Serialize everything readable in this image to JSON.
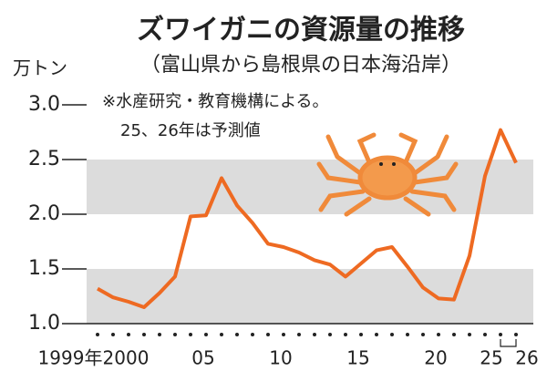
{
  "chart_data": {
    "type": "line",
    "title": "ズワイガニの資源量の推移",
    "subtitle": "（富山県から島根県の日本海沿岸）",
    "notes": [
      "※水産研究・教育機構による。",
      "25、26年は予測値"
    ],
    "y_unit": "万トン",
    "x": [
      1999,
      2000,
      2001,
      2002,
      2003,
      2004,
      2005,
      2006,
      2007,
      2008,
      2009,
      2010,
      2011,
      2012,
      2013,
      2014,
      2015,
      2016,
      2017,
      2018,
      2019,
      2020,
      2021,
      2022,
      2023,
      2024,
      2025,
      2026
    ],
    "values": [
      1.32,
      1.24,
      1.2,
      1.15,
      1.28,
      1.43,
      1.98,
      1.99,
      2.33,
      2.08,
      1.92,
      1.73,
      1.7,
      1.65,
      1.58,
      1.54,
      1.43,
      1.55,
      1.67,
      1.7,
      1.52,
      1.33,
      1.23,
      1.22,
      1.62,
      2.35,
      2.77,
      2.47
    ],
    "color": "#ee6a22",
    "xlim": [
      1999,
      2026
    ],
    "xticks": [
      {
        "value": 1999,
        "label": "1999年"
      },
      2000,
      {
        "value": 2005,
        "label": "05"
      },
      {
        "value": 2010,
        "label": "10"
      },
      {
        "value": 2015,
        "label": "15"
      },
      {
        "value": 2020,
        "label": "20"
      },
      {
        "value": 2025,
        "label": "25"
      },
      {
        "value": 2026,
        "label": "26"
      }
    ],
    "ylim": [
      1.0,
      3.0
    ],
    "yticks": [
      {
        "value": 1,
        "label": "1.0"
      },
      {
        "value": 1.5,
        "label": "1.5"
      },
      {
        "value": 2,
        "label": "2.0"
      },
      {
        "value": 2.5,
        "label": "2.5"
      },
      {
        "value": 3,
        "label": "3.0"
      }
    ],
    "bands": [
      [
        1.0,
        1.5
      ],
      [
        2.0,
        2.5
      ]
    ]
  }
}
